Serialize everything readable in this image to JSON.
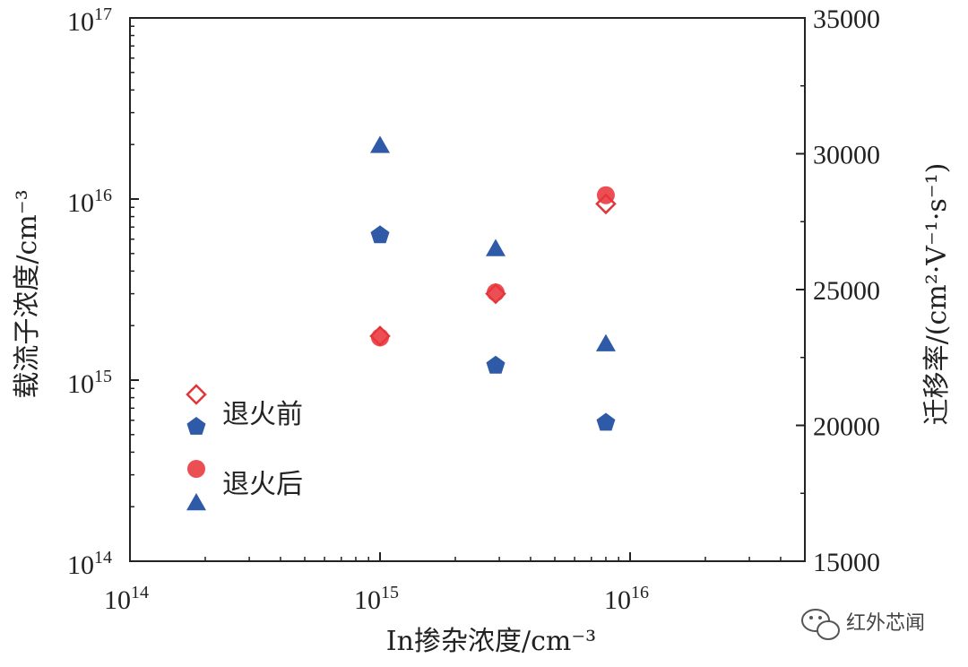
{
  "chart_data": {
    "type": "scatter",
    "x_axis": {
      "label": "In掺杂浓度/cm⁻³",
      "scale": "log",
      "range": [
        100000000000000.0,
        5e+16
      ],
      "ticks": [
        {
          "value": 100000000000000.0,
          "base": "10",
          "exp": "14"
        },
        {
          "value": 1000000000000000.0,
          "base": "10",
          "exp": "15"
        },
        {
          "value": 1e+16,
          "base": "10",
          "exp": "16"
        }
      ]
    },
    "y_axis_left": {
      "label": "载流子浓度/cm⁻³",
      "scale": "log",
      "range": [
        100000000000000.0,
        1e+17
      ],
      "ticks": [
        {
          "value": 100000000000000.0,
          "base": "10",
          "exp": "14"
        },
        {
          "value": 1000000000000000.0,
          "base": "10",
          "exp": "15"
        },
        {
          "value": 1e+16,
          "base": "10",
          "exp": "16"
        },
        {
          "value": 1e+17,
          "base": "10",
          "exp": "17"
        }
      ]
    },
    "y_axis_right": {
      "label": "迁移率/(cm²·V⁻¹·s⁻¹)",
      "scale": "linear",
      "range": [
        15000,
        35000
      ],
      "ticks": [
        {
          "value": 15000,
          "text": "15000"
        },
        {
          "value": 20000,
          "text": "20000"
        },
        {
          "value": 25000,
          "text": "25000"
        },
        {
          "value": 30000,
          "text": "30000"
        },
        {
          "value": 35000,
          "text": "35000"
        }
      ]
    },
    "series": [
      {
        "name": "退火前",
        "marker": "diamond-open",
        "color": "#e0363a",
        "axis": "left",
        "points": [
          {
            "x": 1000000000000000.0,
            "y": 1750000000000000.0
          },
          {
            "x": 2900000000000000.0,
            "y": 3000000000000000.0
          },
          {
            "x": 8000000000000000.0,
            "y": 9400000000000000.0
          }
        ]
      },
      {
        "name": "退火前",
        "marker": "pentagon",
        "color": "#2e5aa8",
        "axis": "right",
        "points": [
          {
            "x": 1000000000000000.0,
            "y": 27000
          },
          {
            "x": 2900000000000000.0,
            "y": 22200
          },
          {
            "x": 8000000000000000.0,
            "y": 20100
          }
        ]
      },
      {
        "name": "退火后",
        "marker": "circle",
        "color": "#e8353b",
        "axis": "left",
        "points": [
          {
            "x": 1000000000000000.0,
            "y": 1720000000000000.0
          },
          {
            "x": 2900000000000000.0,
            "y": 3050000000000000.0
          },
          {
            "x": 8000000000000000.0,
            "y": 1.05e+16
          }
        ]
      },
      {
        "name": "退火后",
        "marker": "triangle",
        "color": "#2e5aa8",
        "axis": "right",
        "points": [
          {
            "x": 1000000000000000.0,
            "y": 30300
          },
          {
            "x": 2900000000000000.0,
            "y": 26500
          },
          {
            "x": 8000000000000000.0,
            "y": 23000
          }
        ]
      }
    ],
    "legend": {
      "position": "bottom-left",
      "entries": [
        {
          "label": "退火前",
          "markers": [
            "diamond-open",
            "pentagon"
          ]
        },
        {
          "label": "退火后",
          "markers": [
            "circle",
            "triangle"
          ]
        }
      ]
    },
    "grid": false
  },
  "watermark": {
    "text": "红外芯闻",
    "icon": "wechat-icon"
  }
}
